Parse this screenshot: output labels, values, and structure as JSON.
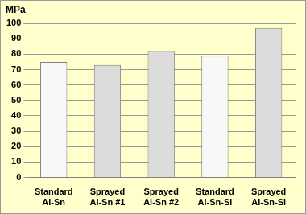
{
  "chart_data": {
    "type": "bar",
    "y_label": "MPa",
    "categories": [
      "Standard Al-Sn",
      "Sprayed Al-Sn #1",
      "Sprayed Al-Sn #2",
      "Standard Al-Sn-Si",
      "Sprayed Al-Sn-Si"
    ],
    "values": [
      75,
      73,
      82,
      79,
      97
    ],
    "colors": [
      "#f8f8f8",
      "#dcdcdc",
      "#dcdcdc",
      "#f8f8f8",
      "#dcdcdc"
    ],
    "ylim": [
      0,
      100
    ],
    "yticks": [
      0,
      10,
      20,
      30,
      40,
      50,
      60,
      70,
      80,
      90,
      100
    ],
    "grid": true
  }
}
